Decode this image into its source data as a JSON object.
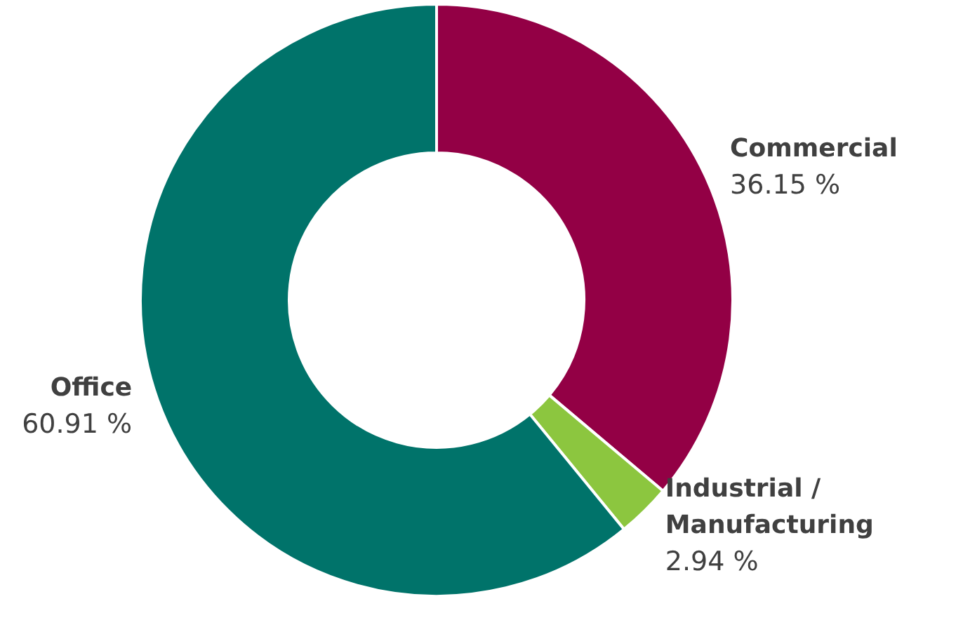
{
  "chart_data": {
    "type": "donut",
    "categories": [
      "Commercial",
      "Industrial / Manufacturing",
      "Office"
    ],
    "values": [
      36.15,
      2.94,
      60.91
    ],
    "value_labels": [
      "36.15 %",
      "2.94 %",
      "60.91 %"
    ],
    "colors": [
      "#930045",
      "#8cc63f",
      "#00736a"
    ],
    "legend": false
  }
}
